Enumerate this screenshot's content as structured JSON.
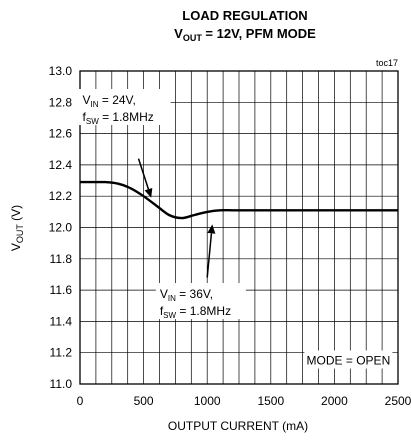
{
  "chart_data": {
    "type": "line",
    "title_line1": "LOAD REGULATION",
    "title_line2": {
      "main": "V",
      "sub": "OUT",
      "rest": " = 12V, PFM MODE"
    },
    "fig_id": "toc17",
    "xlabel": "OUTPUT CURRENT (mA)",
    "ylabel": {
      "main": "V",
      "sub": "OUT",
      "rest": " (V)"
    },
    "xlim": [
      0,
      2500
    ],
    "ylim": [
      11.0,
      13.0
    ],
    "x_ticks": [
      "0",
      "500",
      "1000",
      "1500",
      "2000",
      "2500"
    ],
    "y_ticks": [
      "13.0",
      "12.8",
      "12.6",
      "12.4",
      "12.2",
      "12.0",
      "11.8",
      "11.6",
      "11.4",
      "11.2",
      "11.0"
    ],
    "x_tick_values": [
      0,
      500,
      1000,
      1500,
      2000,
      2500
    ],
    "y_tick_values": [
      13.0,
      12.8,
      12.6,
      12.4,
      12.2,
      12.0,
      11.8,
      11.6,
      11.4,
      11.2,
      11.0
    ],
    "grid": true,
    "series": [
      {
        "x": [
          0,
          100,
          200,
          300,
          400,
          500,
          600,
          700,
          800,
          900,
          1000,
          1100,
          1200,
          1300,
          1500,
          2000,
          2500
        ],
        "y": [
          12.29,
          12.29,
          12.29,
          12.28,
          12.25,
          12.2,
          12.14,
          12.08,
          12.06,
          12.08,
          12.1,
          12.11,
          12.11,
          12.11,
          12.11,
          12.11,
          12.11
        ]
      }
    ],
    "annotations": [
      {
        "line1_main": "V",
        "line1_sub": "IN",
        "line1_rest": " = 24V,",
        "line2_main": "f",
        "line2_sub": "SW",
        "line2_rest": " = 1.8MHz",
        "text_x": 350,
        "text_y": 12.77,
        "arrow_from": [
          460,
          12.44
        ],
        "arrow_to": [
          560,
          12.19
        ]
      },
      {
        "line1_main": "V",
        "line1_sub": "IN",
        "line1_rest": " = 36V,",
        "line2_main": "f",
        "line2_sub": "SW",
        "line2_rest": " = 1.8MHz",
        "text_x": 950,
        "text_y": 11.53,
        "arrow_from": [
          1000,
          11.68
        ],
        "arrow_to": [
          1040,
          12.02
        ]
      },
      {
        "text": "MODE = OPEN",
        "text_x": 2110,
        "text_y": 11.15
      }
    ]
  }
}
